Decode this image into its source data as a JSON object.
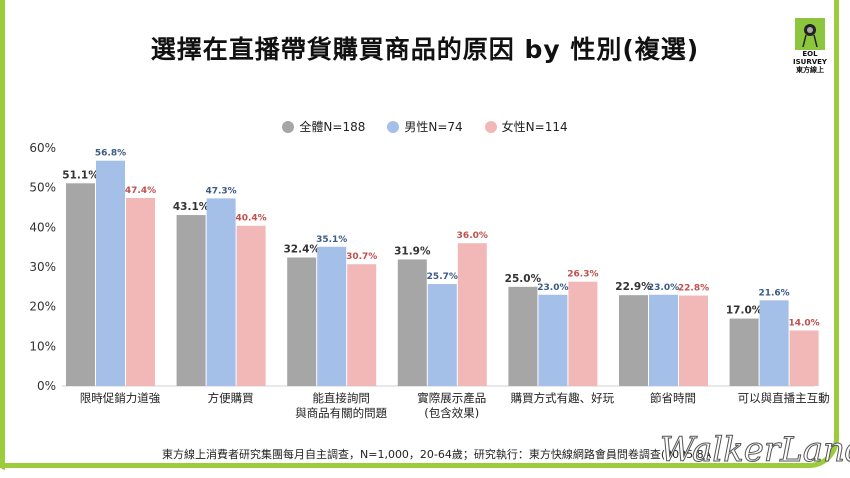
{
  "title": "選擇在直播帶貨購買商品的原因 by 性別(複選)",
  "logo": {
    "line1": "EOL",
    "line2": "ISURVEY",
    "line3": "東方線上"
  },
  "footer": "東方線上消費者研究集團每月自主調查，N=1,000，20-64歲；研究執行：東方快線網路會員問卷調查(2025.8A",
  "watermark": "WalkerLand",
  "chart_data": {
    "type": "bar",
    "title": "選擇在直播帶貨購買商品的原因 by 性別(複選)",
    "categories": [
      "限時促銷力道強",
      "方便購買",
      "能直接詢問\n與商品有關的問題",
      "實際展示產品\n(包含效果)",
      "購買方式有趣、好玩",
      "節省時間",
      "可以與直播主互動"
    ],
    "series": [
      {
        "name": "全體N=188",
        "color": "#a6a6a6",
        "label_color": "#333333",
        "values": [
          51.1,
          43.1,
          32.4,
          31.9,
          25.0,
          22.9,
          17.0
        ]
      },
      {
        "name": "男性N=74",
        "color": "#a4bfe8",
        "label_color": "#3b5b86",
        "values": [
          56.8,
          47.3,
          35.1,
          25.7,
          23.0,
          23.0,
          21.6
        ]
      },
      {
        "name": "女性N=114",
        "color": "#f2b8b8",
        "label_color": "#c0504d",
        "values": [
          47.4,
          40.4,
          30.7,
          36.0,
          26.3,
          22.8,
          14.0
        ]
      }
    ],
    "yticks": [
      "0%",
      "10%",
      "20%",
      "30%",
      "40%",
      "50%",
      "60%"
    ],
    "ylim": [
      0,
      60
    ],
    "legend": "top-center",
    "grid": false
  }
}
